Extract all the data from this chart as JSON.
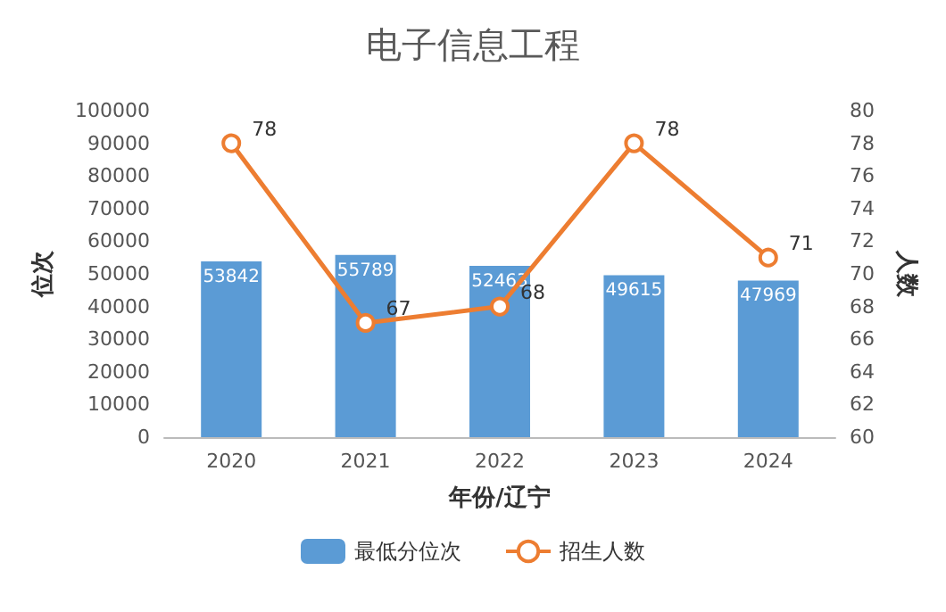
{
  "chart_data": {
    "type": "bar",
    "title": "电子信息工程",
    "xlabel": "年份/辽宁",
    "ylabel": "位次",
    "y2label": "人数",
    "categories": [
      "2020",
      "2021",
      "2022",
      "2023",
      "2024"
    ],
    "series": [
      {
        "name": "最低分位次",
        "color": "#5b9bd5",
        "values": [
          53842,
          55789,
          52463,
          49615,
          47969
        ]
      },
      {
        "name": "招生人数",
        "type": "line",
        "axis": "y2",
        "color": "#ed7d31",
        "marker": "circle",
        "values": [
          78,
          67,
          68,
          78,
          71
        ]
      }
    ],
    "ylim": [
      0,
      100000
    ],
    "yticks": [
      0,
      10000,
      20000,
      30000,
      40000,
      50000,
      60000,
      70000,
      80000,
      90000,
      100000
    ],
    "y2lim": [
      60,
      80
    ],
    "y2ticks": [
      60,
      62,
      64,
      66,
      68,
      70,
      72,
      74,
      76,
      78,
      80
    ],
    "data_labels": true,
    "legend": "bottom",
    "grid": false
  }
}
